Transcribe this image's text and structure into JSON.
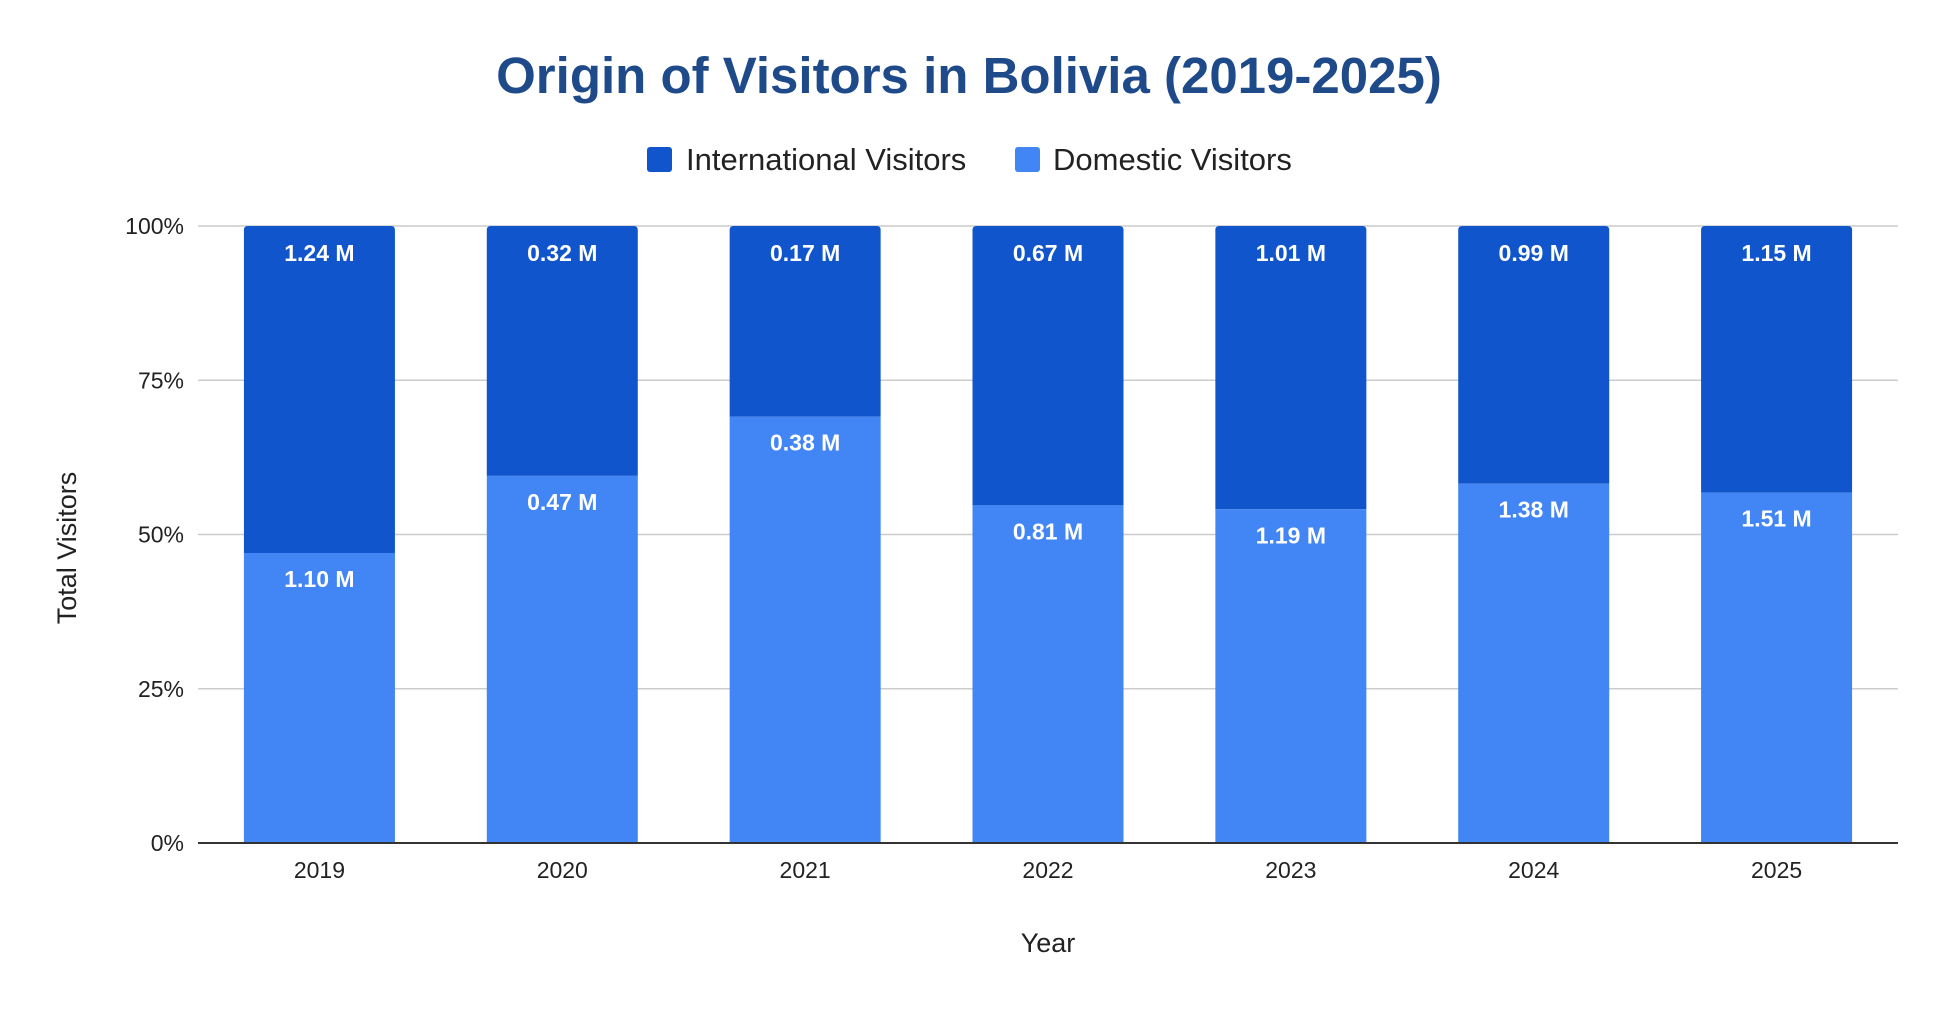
{
  "colors": {
    "title": "#1f4a8a",
    "international": "#1155cc",
    "domestic": "#4285f4",
    "grid": "#cccccc",
    "axis": "#333333",
    "label_text": "#ffffff"
  },
  "chart_data": {
    "type": "bar",
    "stacked": "percent",
    "title": "Origin of Visitors in Bolivia (2019-2025)",
    "xlabel": "Year",
    "ylabel": "Total Visitors",
    "categories": [
      "2019",
      "2020",
      "2021",
      "2022",
      "2023",
      "2024",
      "2025"
    ],
    "y_ticks": [
      "0%",
      "25%",
      "50%",
      "75%",
      "100%"
    ],
    "ylim": [
      0,
      100
    ],
    "grid": true,
    "legend_position": "top",
    "legend": [
      "International Visitors",
      "Domestic Visitors"
    ],
    "series": [
      {
        "name": "Domestic Visitors",
        "values": [
          1.1,
          0.47,
          0.38,
          0.81,
          1.19,
          1.38,
          1.51
        ],
        "labels": [
          "1.10 M",
          "0.47 M",
          "0.38 M",
          "0.81 M",
          "1.19 M",
          "1.38 M",
          "1.51 M"
        ]
      },
      {
        "name": "International Visitors",
        "values": [
          1.24,
          0.32,
          0.17,
          0.67,
          1.01,
          0.99,
          1.15
        ],
        "labels": [
          "1.24 M",
          "0.32 M",
          "0.17 M",
          "0.67 M",
          "1.01 M",
          "0.99 M",
          "1.15 M"
        ]
      }
    ]
  }
}
